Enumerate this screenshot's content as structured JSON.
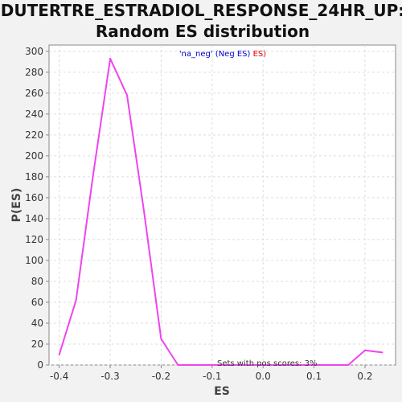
{
  "chart_data": {
    "type": "line",
    "title_line1": "DUTERTRE_ESTRADIOL_RESPONSE_24HR_UP:",
    "title_line2": "Random ES distribution",
    "xlabel": "ES",
    "ylabel": "P(ES)",
    "xlim": [
      -0.42,
      0.26
    ],
    "ylim": [
      0,
      306
    ],
    "x_ticks": [
      -0.4,
      -0.3,
      -0.2,
      -0.1,
      0.0,
      0.1,
      0.2
    ],
    "x_tick_labels": [
      "-0.4",
      "-0.3",
      "-0.2",
      "-0.1",
      "0.0",
      "0.1",
      "0.2"
    ],
    "y_ticks": [
      0,
      20,
      40,
      60,
      80,
      100,
      120,
      140,
      160,
      180,
      200,
      220,
      240,
      260,
      280,
      300
    ],
    "grid": true,
    "legend": {
      "placement": "top-center",
      "parts": [
        {
          "text": "'na_neg' (",
          "color": "#0000cc"
        },
        {
          "text": "Neg ES",
          "color": "#0000cc"
        },
        {
          "text": ")",
          "color": "#0000cc"
        },
        {
          "text": " ES)",
          "color": "#dd0000"
        }
      ]
    },
    "annotation": "Sets with pos scores: 3%",
    "series": [
      {
        "color": "#ee44ee",
        "x": [
          -0.4,
          -0.367,
          -0.334,
          -0.3,
          -0.267,
          -0.234,
          -0.2,
          -0.167,
          -0.134,
          -0.1,
          -0.067,
          -0.034,
          0.0,
          0.034,
          0.067,
          0.1,
          0.134,
          0.167,
          0.2,
          0.234
        ],
        "y": [
          10,
          62,
          180,
          293,
          258,
          148,
          25,
          0,
          0,
          0,
          0,
          0,
          0,
          0,
          0,
          0,
          0,
          0,
          14,
          12
        ]
      }
    ]
  }
}
